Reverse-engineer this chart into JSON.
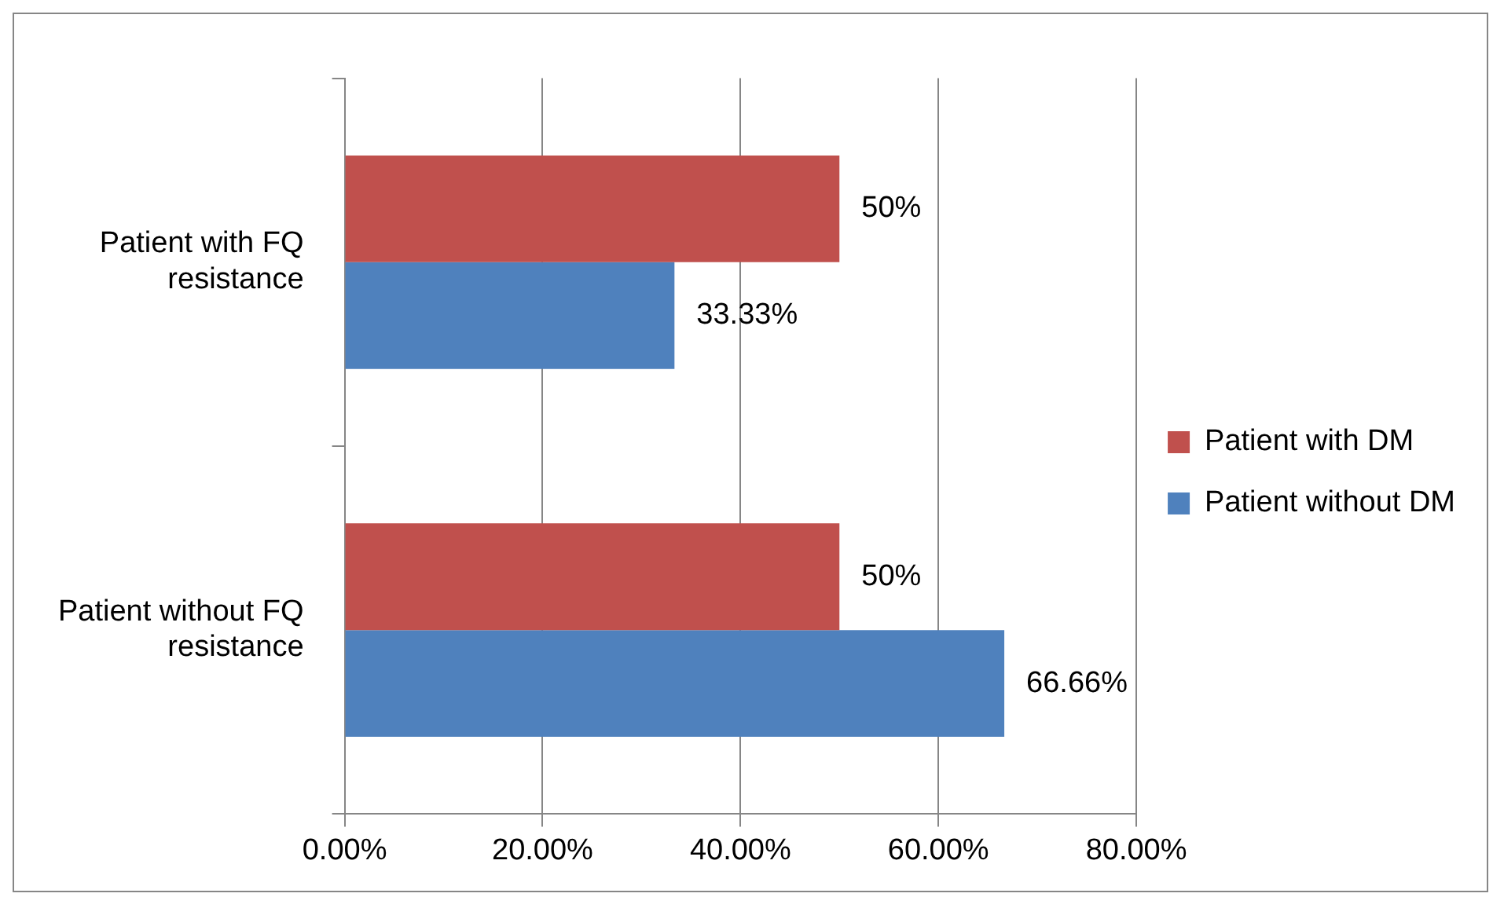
{
  "chart_data": {
    "type": "bar",
    "orientation": "horizontal",
    "categories": [
      "Patient with FQ resistance",
      "Patient without FQ resistance"
    ],
    "series": [
      {
        "name": "Patient with DM",
        "color": "#c0504d",
        "values": [
          50,
          50
        ],
        "value_labels": [
          "50%",
          "50%"
        ]
      },
      {
        "name": "Patient without DM",
        "color": "#4f81bd",
        "values": [
          33.33,
          66.66
        ],
        "value_labels": [
          "33.33%",
          "66.66%"
        ]
      }
    ],
    "xlim": [
      0,
      80
    ],
    "xticks": [
      {
        "value": 0,
        "label": "0.00%"
      },
      {
        "value": 20,
        "label": "20.00%"
      },
      {
        "value": 40,
        "label": "40.00%"
      },
      {
        "value": 60,
        "label": "60.00%"
      },
      {
        "value": 80,
        "label": "80.00%"
      }
    ],
    "grid": "x",
    "legend": "right"
  }
}
